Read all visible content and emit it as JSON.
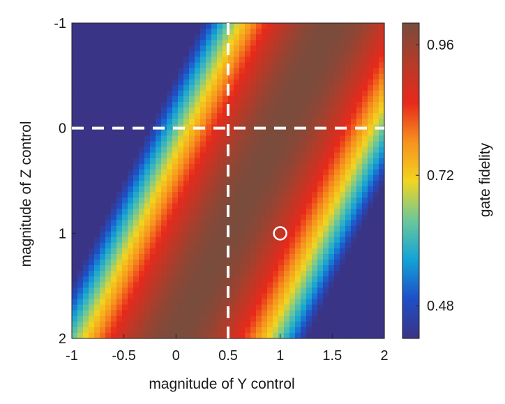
{
  "chart_data": {
    "type": "heatmap",
    "title": "",
    "xlabel": "magnitude of Y control",
    "ylabel": "magnitude of Z control",
    "colorbar_label": "gate fidelity",
    "xlim": [
      -1,
      2
    ],
    "ylim": [
      -1,
      2
    ],
    "y_axis_direction": "down",
    "xticks": [
      -1,
      -0.5,
      0,
      0.5,
      1,
      1.5,
      2
    ],
    "xtick_labels": [
      "-1",
      "-0.5",
      "0",
      "0.5",
      "1",
      "1.5",
      "2"
    ],
    "yticks": [
      -1,
      0,
      1,
      2
    ],
    "ytick_labels": [
      "-1",
      "0",
      "1",
      "2"
    ],
    "colorbar_range": [
      0.42,
      1.0
    ],
    "colorbar_ticks": [
      0.48,
      0.72,
      0.96
    ],
    "colorbar_tick_labels": [
      "0.48",
      "0.72",
      "0.96"
    ],
    "colormap": [
      "#3a3486",
      "#1f4fc8",
      "#13a3d6",
      "#6cc89a",
      "#f2d51f",
      "#f7921d",
      "#e8291c",
      "#b73a28",
      "#7a4c3c"
    ],
    "field": {
      "description_of_bands": "diagonal stripes, fidelity = 1 - a * ((y + 0.5*z - 1) / w)^2 style ridge",
      "ridge_offset": 1.0,
      "z_slope": 0.5,
      "width": 1.25,
      "min_value": 0.42,
      "max_value": 1.0
    },
    "reference_lines": [
      {
        "orientation": "vertical",
        "x": 0.5,
        "style": "dashed",
        "color": "#ffffff"
      },
      {
        "orientation": "horizontal",
        "y": 0,
        "style": "dashed",
        "color": "#ffffff"
      }
    ],
    "markers": [
      {
        "x": 1,
        "y": 1,
        "shape": "open-circle",
        "color": "#ffffff"
      }
    ],
    "grid": false
  }
}
